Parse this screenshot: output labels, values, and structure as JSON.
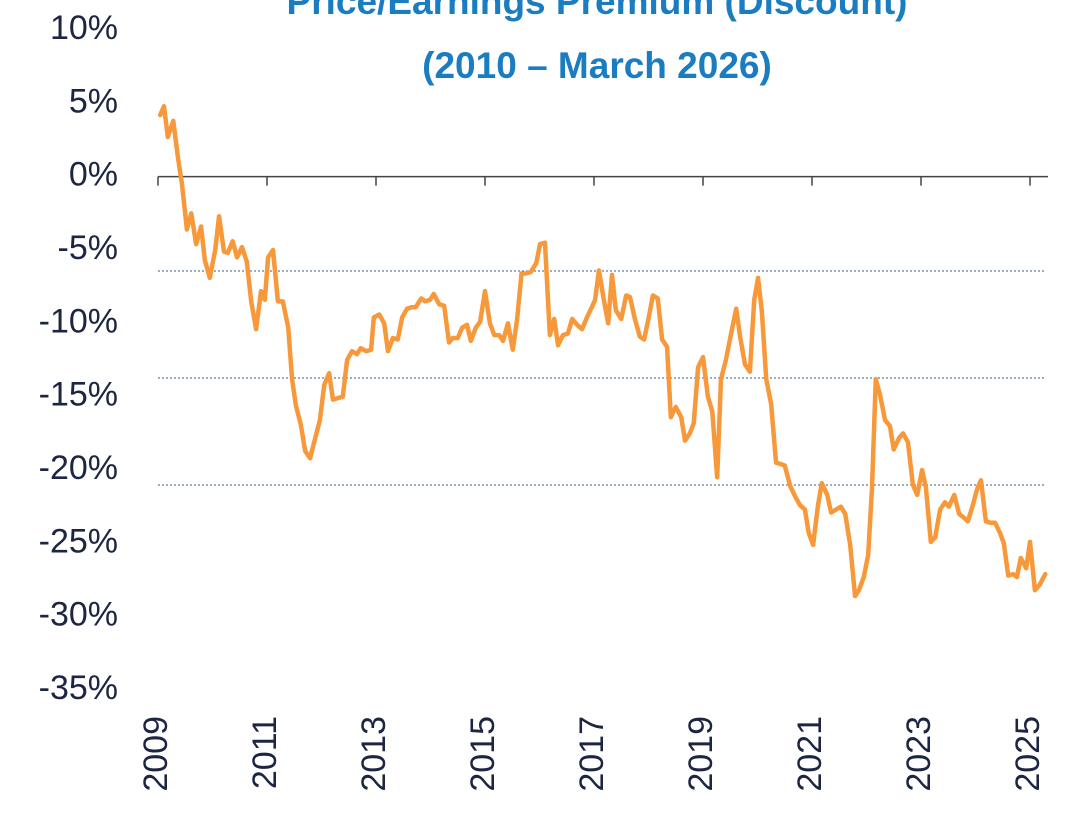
{
  "chart_data": {
    "type": "line",
    "title": "Price/Earnings Premium (Discount)",
    "subtitle": "(2010 – March 2026)",
    "x": [
      2009.04,
      2009.11,
      2009.18,
      2009.28,
      2009.37,
      2009.44,
      2009.53,
      2009.61,
      2009.7,
      2009.79,
      2009.86,
      2009.95,
      2010.05,
      2010.12,
      2010.21,
      2010.28,
      2010.37,
      2010.45,
      2010.54,
      2010.63,
      2010.71,
      2010.8,
      2010.89,
      2010.96,
      2011.02,
      2011.11,
      2011.2,
      2011.29,
      2011.39,
      2011.46,
      2011.53,
      2011.62,
      2011.7,
      2011.79,
      2011.88,
      2011.97,
      2012.05,
      2012.14,
      2012.21,
      2012.3,
      2012.39,
      2012.47,
      2012.56,
      2012.65,
      2012.72,
      2012.82,
      2012.91,
      2012.96,
      2013.06,
      2013.15,
      2013.22,
      2013.31,
      2013.4,
      2013.48,
      2013.57,
      2013.66,
      2013.73,
      2013.83,
      2013.9,
      2013.99,
      2014.06,
      2014.16,
      2014.25,
      2014.34,
      2014.41,
      2014.5,
      2014.58,
      2014.67,
      2014.74,
      2014.83,
      2014.91,
      2015.0,
      2015.09,
      2015.17,
      2015.26,
      2015.33,
      2015.42,
      2015.51,
      2015.59,
      2015.67,
      2015.75,
      2015.84,
      2015.94,
      2016.01,
      2016.1,
      2016.19,
      2016.27,
      2016.34,
      2016.43,
      2016.52,
      2016.6,
      2016.69,
      2016.78,
      2016.87,
      2016.96,
      2017.02,
      2017.09,
      2017.18,
      2017.26,
      2017.33,
      2017.4,
      2017.5,
      2017.59,
      2017.66,
      2017.75,
      2017.84,
      2017.92,
      2018.01,
      2018.08,
      2018.17,
      2018.25,
      2018.34,
      2018.41,
      2018.5,
      2018.6,
      2018.67,
      2018.76,
      2018.83,
      2018.91,
      2019.0,
      2019.09,
      2019.17,
      2019.26,
      2019.33,
      2019.42,
      2019.51,
      2019.61,
      2019.68,
      2019.77,
      2019.86,
      2019.94,
      2020.01,
      2020.08,
      2020.16,
      2020.25,
      2020.34,
      2020.43,
      2020.5,
      2020.6,
      2020.69,
      2020.78,
      2020.87,
      2020.94,
      2021.02,
      2021.11,
      2021.18,
      2021.28,
      2021.35,
      2021.44,
      2021.53,
      2021.61,
      2021.7,
      2021.79,
      2021.86,
      2021.95,
      2022.03,
      2022.1,
      2022.17,
      2022.25,
      2022.34,
      2022.43,
      2022.5,
      2022.6,
      2022.67,
      2022.76,
      2022.85,
      2022.93,
      2023.02,
      2023.09,
      2023.18,
      2023.26,
      2023.35,
      2023.44,
      2023.51,
      2023.61,
      2023.7,
      2023.77,
      2023.86,
      2023.95,
      2024.03,
      2024.1,
      2024.19,
      2024.28,
      2024.36,
      2024.45,
      2024.52,
      2024.6,
      2024.69,
      2024.76,
      2024.83,
      2024.93,
      2025.0,
      2025.09,
      2025.18,
      2025.28
    ],
    "series": [
      {
        "color": "#f7983a",
        "values": [
          4.2,
          4.8,
          2.7,
          3.8,
          1.2,
          -0.5,
          -3.6,
          -2.5,
          -4.6,
          -3.4,
          -5.7,
          -6.9,
          -5.0,
          -2.7,
          -5.1,
          -5.2,
          -4.4,
          -5.5,
          -4.8,
          -5.8,
          -8.5,
          -10.4,
          -7.8,
          -8.4,
          -5.5,
          -5.0,
          -8.5,
          -8.5,
          -10.3,
          -13.8,
          -15.6,
          -16.9,
          -18.7,
          -19.2,
          -17.9,
          -16.6,
          -14.2,
          -13.4,
          -15.2,
          -15.1,
          -15.0,
          -12.5,
          -11.9,
          -12.1,
          -11.7,
          -11.9,
          -11.8,
          -9.6,
          -9.4,
          -10.0,
          -11.9,
          -11.0,
          -11.1,
          -9.6,
          -9.0,
          -8.9,
          -8.9,
          -8.3,
          -8.5,
          -8.4,
          -8.0,
          -8.7,
          -8.8,
          -11.3,
          -11.0,
          -11.0,
          -10.3,
          -10.1,
          -11.2,
          -10.3,
          -9.9,
          -7.8,
          -10.0,
          -10.8,
          -10.8,
          -11.2,
          -10.0,
          -11.8,
          -9.7,
          -6.6,
          -6.6,
          -6.5,
          -5.9,
          -4.6,
          -4.5,
          -10.8,
          -9.7,
          -11.5,
          -10.8,
          -10.7,
          -9.7,
          -10.1,
          -10.4,
          -9.6,
          -8.9,
          -8.4,
          -6.4,
          -8.4,
          -10.0,
          -6.7,
          -9.1,
          -9.7,
          -8.1,
          -8.2,
          -9.7,
          -10.9,
          -11.1,
          -9.5,
          -8.1,
          -8.3,
          -11.1,
          -11.6,
          -16.4,
          -15.7,
          -16.4,
          -18.0,
          -17.5,
          -16.8,
          -13.0,
          -12.3,
          -15.0,
          -16.0,
          -20.5,
          -13.8,
          -12.5,
          -10.8,
          -9.0,
          -10.9,
          -12.8,
          -13.3,
          -8.4,
          -6.9,
          -9.2,
          -13.8,
          -15.5,
          -19.5,
          -19.6,
          -19.7,
          -21.1,
          -21.8,
          -22.4,
          -22.7,
          -24.3,
          -25.1,
          -22.4,
          -20.9,
          -21.7,
          -22.9,
          -22.7,
          -22.5,
          -23.0,
          -25.1,
          -28.6,
          -28.2,
          -27.3,
          -25.8,
          -21.3,
          -13.8,
          -14.9,
          -16.6,
          -17.0,
          -18.6,
          -17.8,
          -17.5,
          -18.1,
          -21.0,
          -21.7,
          -20.0,
          -21.2,
          -24.9,
          -24.6,
          -22.7,
          -22.2,
          -22.5,
          -21.7,
          -23.0,
          -23.2,
          -23.5,
          -22.4,
          -21.3,
          -20.7,
          -23.5,
          -23.6,
          -23.6,
          -24.3,
          -25.0,
          -27.2,
          -27.1,
          -27.3,
          -26.0,
          -26.7,
          -24.9,
          -28.2,
          -27.8,
          -27.1
        ]
      }
    ],
    "xlim": [
      2009,
      2025.33
    ],
    "xticks": [
      2009,
      2011,
      2013,
      2015,
      2017,
      2019,
      2021,
      2023,
      2025
    ],
    "ylim": [
      -35,
      10
    ],
    "yticks": [
      {
        "value": 10,
        "label": "10%"
      },
      {
        "value": 5,
        "label": "5%"
      },
      {
        "value": 0,
        "label": "0%"
      },
      {
        "value": -5,
        "label": "-5%"
      },
      {
        "value": -10,
        "label": "-10%"
      },
      {
        "value": -15,
        "label": "-15%"
      },
      {
        "value": -20,
        "label": "-20%"
      },
      {
        "value": -25,
        "label": "-25%"
      },
      {
        "value": -30,
        "label": "-30%"
      },
      {
        "value": -35,
        "label": "-35%"
      }
    ],
    "grid": false
  }
}
